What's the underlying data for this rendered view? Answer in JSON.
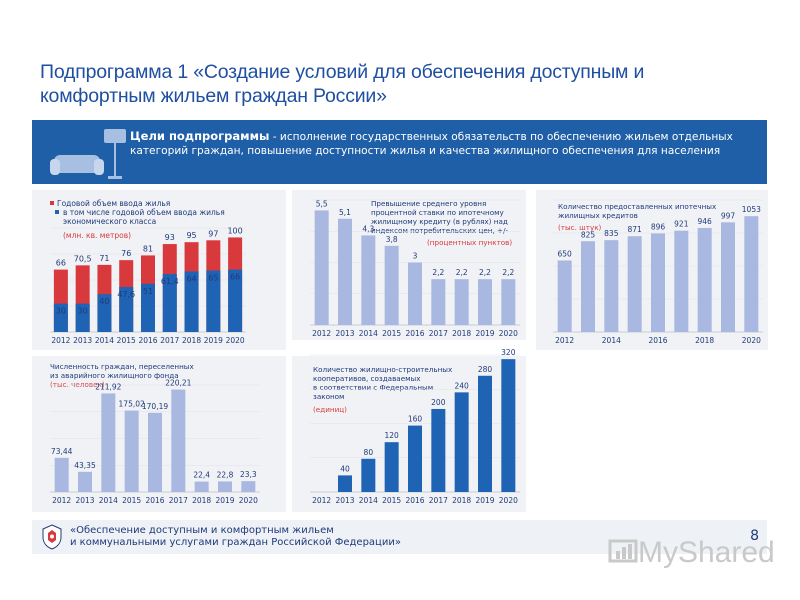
{
  "title": "Подпрограмма 1 «Создание условий для обеспечения доступным и комфортным жильем граждан России»",
  "banner": {
    "heading": "Цели подпрограммы",
    "text": " - исполнение государственных обязательств по обеспечению жильем отдельных категорий граждан, повышение доступности жилья и качества жилищного обеспечения для населения"
  },
  "footer": {
    "text_line1": "«Обеспечение доступным и комфортным жильем",
    "text_line2": "и коммунальными услугами граждан Российской Федерации»",
    "page_number": "8"
  },
  "watermark": "MyShared",
  "colors": {
    "red": "#d8393c",
    "blue": "#1f63b5",
    "light": "#a9b8e0",
    "banner": "#1f5fa8"
  },
  "chart_data": [
    {
      "type": "bar",
      "title_line1": "Годовой объем ввода жилья",
      "title_line2": "в том числе годовой объем ввода жилья",
      "title_line3": "экономического класса",
      "unit": "(млн. кв. метров)",
      "categories": [
        "2012",
        "2013",
        "2014",
        "2015",
        "2016",
        "2017",
        "2018",
        "2019",
        "2020"
      ],
      "series": [
        {
          "name": "Годовой объем ввода жилья",
          "values": [
            66,
            70.5,
            71,
            76,
            81,
            93,
            95,
            97,
            100
          ],
          "labels": [
            "66",
            "70,5",
            "71",
            "76",
            "81",
            "93",
            "95",
            "97",
            "100"
          ]
        },
        {
          "name": "в том числе годовой объем ввода жилья экономического класса",
          "values": [
            30,
            30,
            40,
            47.6,
            51,
            61.4,
            64,
            65,
            66
          ],
          "labels": [
            "30",
            "30",
            "40",
            "47,6",
            "51",
            "61,4",
            "64",
            "65",
            "66"
          ]
        }
      ],
      "ylim": [
        0,
        110
      ]
    },
    {
      "type": "bar",
      "title_line1": "Превышение среднего уровня",
      "title_line2": "процентной ставки по ипотечному",
      "title_line3": "жилищному кредиту (в рублях) над",
      "title_line4": "индексом потребительских цен, +/-",
      "unit": "(процентных пунктов)",
      "categories": [
        "2012",
        "2013",
        "2014",
        "2015",
        "2016",
        "2017",
        "2018",
        "2019",
        "2020"
      ],
      "values": [
        5.5,
        5.1,
        4.3,
        3.8,
        3,
        2.2,
        2.2,
        2.2,
        2.2
      ],
      "labels": [
        "5,5",
        "5,1",
        "4,3",
        "3,8",
        "3",
        "2,2",
        "2,2",
        "2,2",
        "2,2"
      ],
      "ylim": [
        0,
        6
      ]
    },
    {
      "type": "bar",
      "title_line1": "Количество предоставленных ипотечных",
      "title_line2": "жилищных кредитов",
      "unit": "(тыс. штук)",
      "categories": [
        "2012",
        "2013",
        "2014",
        "2015",
        "2016",
        "2017",
        "2018",
        "2019",
        "2020"
      ],
      "tick_labels": [
        "2012",
        "",
        "2014",
        "",
        "2016",
        "",
        "2018",
        "",
        "2020"
      ],
      "values": [
        650,
        825,
        835,
        871,
        896,
        921,
        946,
        997,
        1053
      ],
      "labels": [
        "650",
        "825",
        "835",
        "871",
        "896",
        "921",
        "946",
        "997",
        "1053"
      ],
      "ylim": [
        0,
        1200
      ]
    },
    {
      "type": "bar",
      "title_line1": "Численность граждан, переселенных",
      "title_line2": "из аварийного жилищного фонда",
      "unit": "(тыс. человек)",
      "categories": [
        "2012",
        "2013",
        "2014",
        "2015",
        "2016",
        "2017",
        "2018",
        "2019",
        "2020"
      ],
      "values": [
        73.44,
        43.35,
        211.92,
        175.02,
        170.19,
        220.21,
        22.4,
        22.8,
        23.3
      ],
      "labels": [
        "73,44",
        "43,35",
        "211,92",
        "175,02",
        "170,19",
        "220,21",
        "22,4",
        "22,8",
        "23,3"
      ],
      "ylim": [
        0,
        230
      ]
    },
    {
      "type": "bar",
      "title_line1": "Количество жилищно-строительных",
      "title_line2": "кооперативов, создаваемых",
      "title_line3": "в соответствии с Федеральным",
      "title_line4": "законом",
      "unit": "(единиц)",
      "categories": [
        "2012",
        "2013",
        "2014",
        "2015",
        "2016",
        "2017",
        "2018",
        "2019",
        "2020"
      ],
      "values": [
        0,
        40,
        80,
        120,
        160,
        200,
        240,
        280,
        320
      ],
      "labels": [
        "",
        "40",
        "80",
        "120",
        "160",
        "200",
        "240",
        "280",
        "320"
      ],
      "ylim": [
        0,
        330
      ]
    }
  ]
}
